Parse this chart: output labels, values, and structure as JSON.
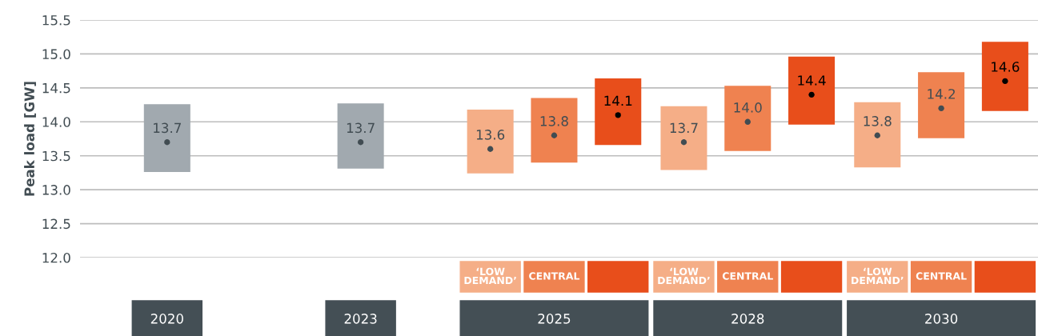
{
  "chart_data": {
    "type": "bar",
    "categories": [
      "2020",
      "2023",
      "2025",
      "2028",
      "2030"
    ],
    "ylabel": "Peak load [GW]",
    "ylim": [
      12.0,
      15.5
    ],
    "yticks": [
      {
        "value": 12,
        "label": "12.0"
      },
      12.5,
      {
        "value": 13,
        "label": "13.0"
      },
      13.5,
      {
        "value": 14,
        "label": "14.0"
      },
      14.5,
      {
        "value": 15,
        "label": "15.0"
      },
      15.5
    ],
    "grid": "y",
    "series": [
      {
        "color": "#a1a9af",
        "base": [
          13.26,
          13.31,
          null,
          null,
          null
        ],
        "values": [
          1.0,
          0.96,
          null,
          null,
          null
        ]
      },
      {
        "name": "‘LOW\nDEMAND’",
        "color": "#f5ae87",
        "base": [
          null,
          null,
          13.24,
          13.29,
          13.33
        ],
        "values": [
          null,
          null,
          0.94,
          0.94,
          0.96
        ]
      },
      {
        "name": "CENTRAL",
        "color": "#ef8250",
        "base": [
          null,
          null,
          13.4,
          13.57,
          13.76
        ],
        "values": [
          null,
          null,
          0.95,
          0.96,
          0.97
        ]
      },
      {
        "color": "#e84e1b",
        "base": [
          null,
          null,
          13.66,
          13.96,
          14.16
        ],
        "values": [
          null,
          null,
          0.98,
          1.0,
          1.02
        ]
      },
      {
        "type": "scatter",
        "color": "#414c52",
        "values": [
          13.7,
          13.7,
          null,
          null,
          null
        ],
        "value_labels": [
          "13.7",
          "13.7",
          null,
          null,
          null
        ]
      },
      {
        "type": "scatter",
        "color": "#414c52",
        "values": [
          null,
          null,
          13.6,
          13.7,
          13.8
        ],
        "value_labels": [
          null,
          null,
          "13.6",
          "13.7",
          "13.8"
        ]
      },
      {
        "type": "scatter",
        "color": "#414c52",
        "values": [
          null,
          null,
          13.8,
          14.0,
          14.2
        ],
        "value_labels": [
          null,
          null,
          "13.8",
          "14.0",
          "14.2"
        ]
      },
      {
        "type": "scatter",
        "color": "#000000",
        "values": [
          null,
          null,
          14.1,
          14.4,
          14.6
        ],
        "value_labels": [
          null,
          null,
          "14.1",
          "14.4",
          "14.6"
        ]
      }
    ]
  }
}
